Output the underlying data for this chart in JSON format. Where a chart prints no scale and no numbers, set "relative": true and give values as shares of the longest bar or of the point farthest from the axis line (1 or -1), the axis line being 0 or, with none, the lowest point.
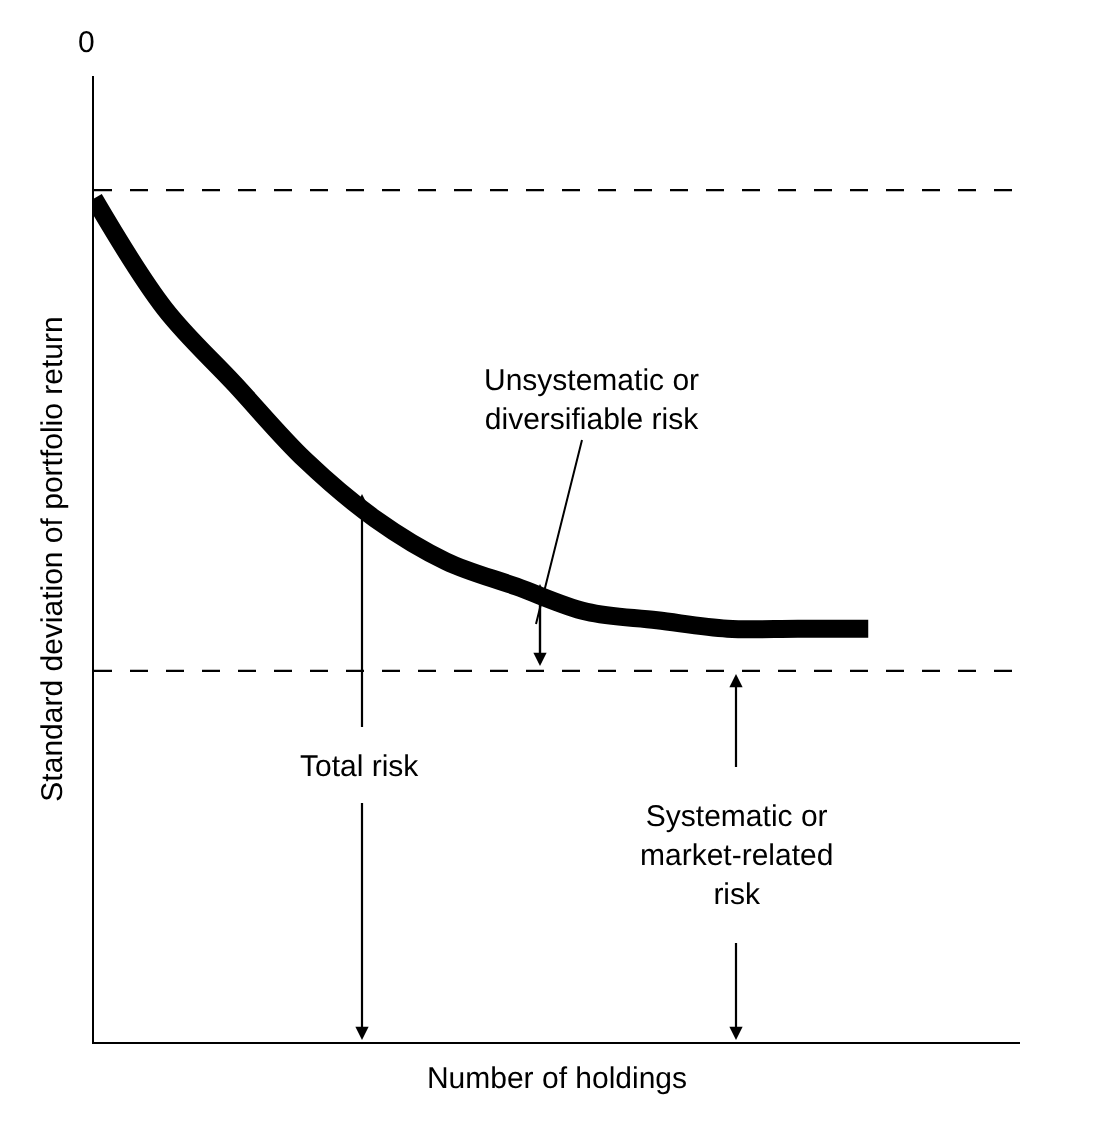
{
  "chart_data": {
    "type": "line",
    "relative": true,
    "xlabel": "Number of holdings",
    "ylabel": "Standard deviation of portfolio return",
    "categories": [
      null,
      null,
      null,
      null,
      null,
      null,
      null,
      null,
      null,
      null,
      null,
      null
    ],
    "series": [
      {
        "color": "#000000",
        "values": [
          1,
          0.87,
          0.78,
          0.69,
          0.62,
          0.57,
          0.54,
          0.51,
          0.5,
          0.49,
          0.49,
          0.49
        ]
      }
    ],
    "ref_lines": [
      {
        "axis": "y",
        "value": 1.01,
        "color": "#000000",
        "line_style": "dashed"
      },
      {
        "axis": "y",
        "value": 0.44,
        "color": "#000000",
        "line_style": "dashed"
      }
    ],
    "annotations": [
      "0",
      "Unsystematic or\ndiversifiable risk",
      "Total risk",
      "Systematic or\nmarket-related\nrisk"
    ],
    "marker": "none",
    "line_style": "solid"
  }
}
